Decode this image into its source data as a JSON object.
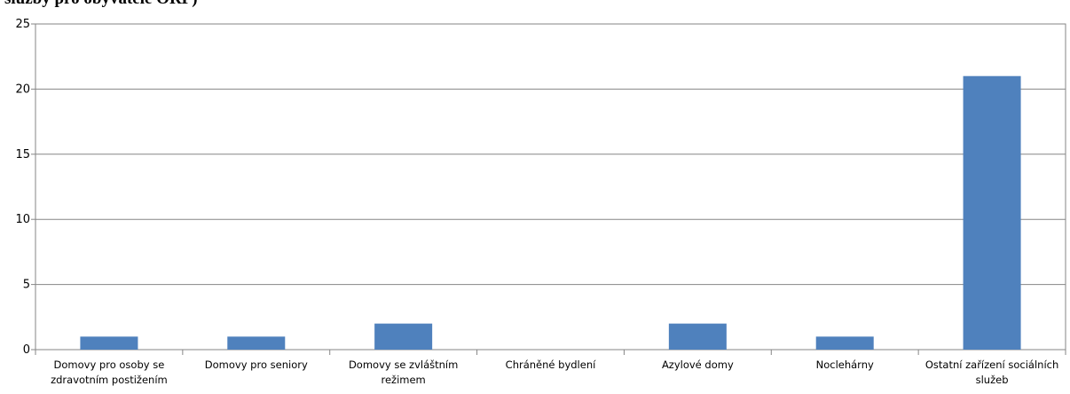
{
  "title": "služby pro obyvatele ORP)",
  "chart_data": {
    "type": "bar",
    "title": "služby pro obyvatele ORP)",
    "xlabel": "",
    "ylabel": "",
    "categories": [
      [
        "Domovy pro osoby se",
        "zdravotním postižením"
      ],
      [
        "Domovy pro seniory"
      ],
      [
        "Domovy se zvláštním",
        "režimem"
      ],
      [
        "Chráněné bydlení"
      ],
      [
        "Azylové domy"
      ],
      [
        "Noclehárny"
      ],
      [
        "Ostatní zařízení sociálních",
        "služeb"
      ]
    ],
    "values": [
      1,
      1,
      2,
      0,
      2,
      1,
      21
    ],
    "ylim": [
      0,
      25
    ],
    "yticks": [
      0,
      5,
      10,
      15,
      20,
      25
    ],
    "grid": true,
    "legend": "none",
    "bar_color": "#4f81bd"
  }
}
